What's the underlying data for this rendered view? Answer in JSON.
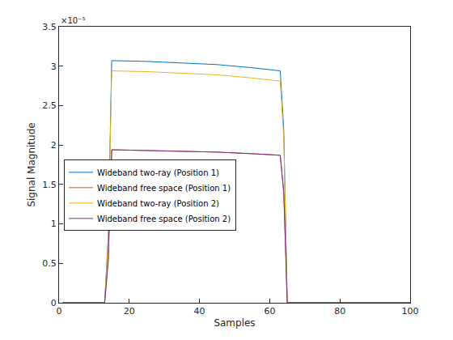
{
  "chart_data": {
    "type": "line",
    "xlabel": "Samples",
    "ylabel": "Signal Magnitude",
    "annotations": [
      "×10⁻⁵"
    ],
    "x": [
      1,
      13,
      14,
      15,
      25,
      35,
      45,
      55,
      63,
      64,
      65,
      100
    ],
    "series": [
      {
        "name": "Wideband two-ray (Position 1)",
        "color": "#0072BD",
        "values": [
          0,
          0,
          8.5e-06,
          3.07e-05,
          3.06e-05,
          3.04e-05,
          3.02e-05,
          2.98e-05,
          2.94e-05,
          2.2e-05,
          0,
          0
        ]
      },
      {
        "name": "Wideband free space (Position 1)",
        "color": "#D95319",
        "values": [
          0,
          0,
          5.5e-06,
          1.94e-05,
          1.93e-05,
          1.92e-05,
          1.91e-05,
          1.89e-05,
          1.87e-05,
          1.4e-05,
          0,
          0
        ]
      },
      {
        "name": "Wideband two-ray (Position 2)",
        "color": "#EDB120",
        "values": [
          0,
          0,
          8e-06,
          2.94e-05,
          2.93e-05,
          2.91e-05,
          2.89e-05,
          2.85e-05,
          2.81e-05,
          2.1e-05,
          0,
          0
        ]
      },
      {
        "name": "Wideband free space (Position 2)",
        "color": "#7E2F8E",
        "values": [
          0,
          0,
          5.2e-06,
          1.94e-05,
          1.93e-05,
          1.92e-05,
          1.91e-05,
          1.89e-05,
          1.87e-05,
          1.4e-05,
          0,
          0
        ]
      }
    ],
    "xlim": [
      0,
      100
    ],
    "xticks": [
      0,
      20,
      40,
      60,
      80,
      100
    ],
    "ylim": [
      0,
      3.5e-05
    ],
    "yticks": [
      0,
      {
        "value": 5e-06,
        "label": "0.5"
      },
      {
        "value": 1e-05,
        "label": "1"
      },
      {
        "value": 1.5e-05,
        "label": "1.5"
      },
      {
        "value": 2e-05,
        "label": "2"
      },
      {
        "value": 2.5e-05,
        "label": "2.5"
      },
      {
        "value": 3e-05,
        "label": "3"
      },
      {
        "value": 3.5e-05,
        "label": "3.5"
      }
    ],
    "grid": false,
    "legend": "southwest"
  }
}
